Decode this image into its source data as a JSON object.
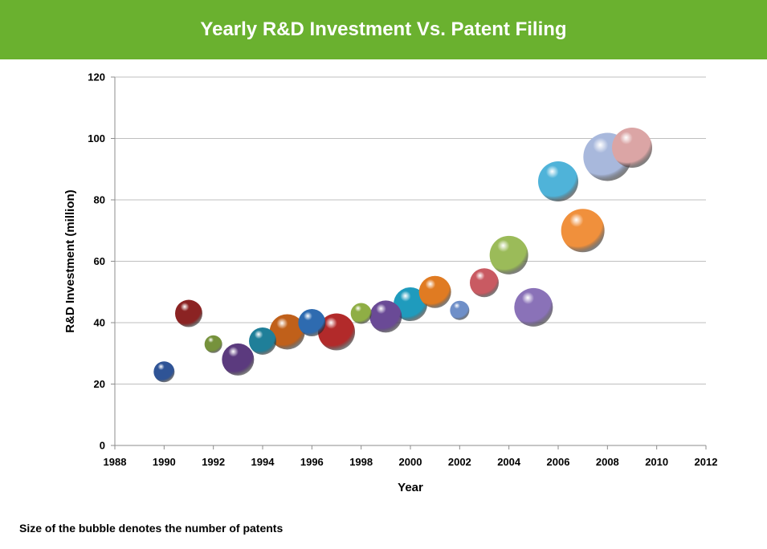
{
  "header": {
    "title": "Yearly R&D Investment Vs. Patent Filing"
  },
  "footnote": "Size of the bubble denotes the number of patents",
  "colors": {
    "header_bg": "#6ab12f",
    "gridline": "#bfbfbf",
    "axis": "#8c8c8c"
  },
  "chart_data": {
    "type": "bubble",
    "title": "Yearly R&D Investment Vs. Patent Filing",
    "xlabel": "Year",
    "ylabel": "R&D Investment (million)",
    "xlim": [
      1988,
      2012
    ],
    "ylim": [
      0,
      120
    ],
    "xticks": [
      1988,
      1990,
      1992,
      1994,
      1996,
      1998,
      2000,
      2002,
      2004,
      2006,
      2008,
      2010,
      2012
    ],
    "yticks": [
      0,
      20,
      40,
      60,
      80,
      100,
      120
    ],
    "grid": "horizontal",
    "legend": "none",
    "points": [
      {
        "x": 1990,
        "y": 24,
        "size": 13,
        "color": "#2f5496"
      },
      {
        "x": 1991,
        "y": 43,
        "size": 17,
        "color": "#8b2323"
      },
      {
        "x": 1992,
        "y": 33,
        "size": 11,
        "color": "#76923c"
      },
      {
        "x": 1993,
        "y": 28,
        "size": 20,
        "color": "#5b3a7e"
      },
      {
        "x": 1994,
        "y": 34,
        "size": 17,
        "color": "#1f7f99"
      },
      {
        "x": 1995,
        "y": 37,
        "size": 22,
        "color": "#c0601a"
      },
      {
        "x": 1996,
        "y": 40,
        "size": 17,
        "color": "#2e6bb0"
      },
      {
        "x": 1997,
        "y": 37,
        "size": 23,
        "color": "#b22a2a"
      },
      {
        "x": 1998,
        "y": 43,
        "size": 13,
        "color": "#8fae45"
      },
      {
        "x": 1999,
        "y": 42,
        "size": 20,
        "color": "#6a4a96"
      },
      {
        "x": 2000,
        "y": 46,
        "size": 21,
        "color": "#1f9bbd"
      },
      {
        "x": 2001,
        "y": 50,
        "size": 20,
        "color": "#e07b22"
      },
      {
        "x": 2002,
        "y": 44,
        "size": 12,
        "color": "#6f8fc8"
      },
      {
        "x": 2003,
        "y": 53,
        "size": 18,
        "color": "#c95a62"
      },
      {
        "x": 2004,
        "y": 62,
        "size": 24,
        "color": "#9bbb59"
      },
      {
        "x": 2005,
        "y": 45,
        "size": 24,
        "color": "#8a72b8"
      },
      {
        "x": 2006,
        "y": 86,
        "size": 25,
        "color": "#4fb3d9"
      },
      {
        "x": 2007,
        "y": 70,
        "size": 27,
        "color": "#f0903c"
      },
      {
        "x": 2008,
        "y": 94,
        "size": 30,
        "color": "#a8b8dc"
      },
      {
        "x": 2009,
        "y": 97,
        "size": 25,
        "color": "#dba5a5"
      }
    ]
  }
}
